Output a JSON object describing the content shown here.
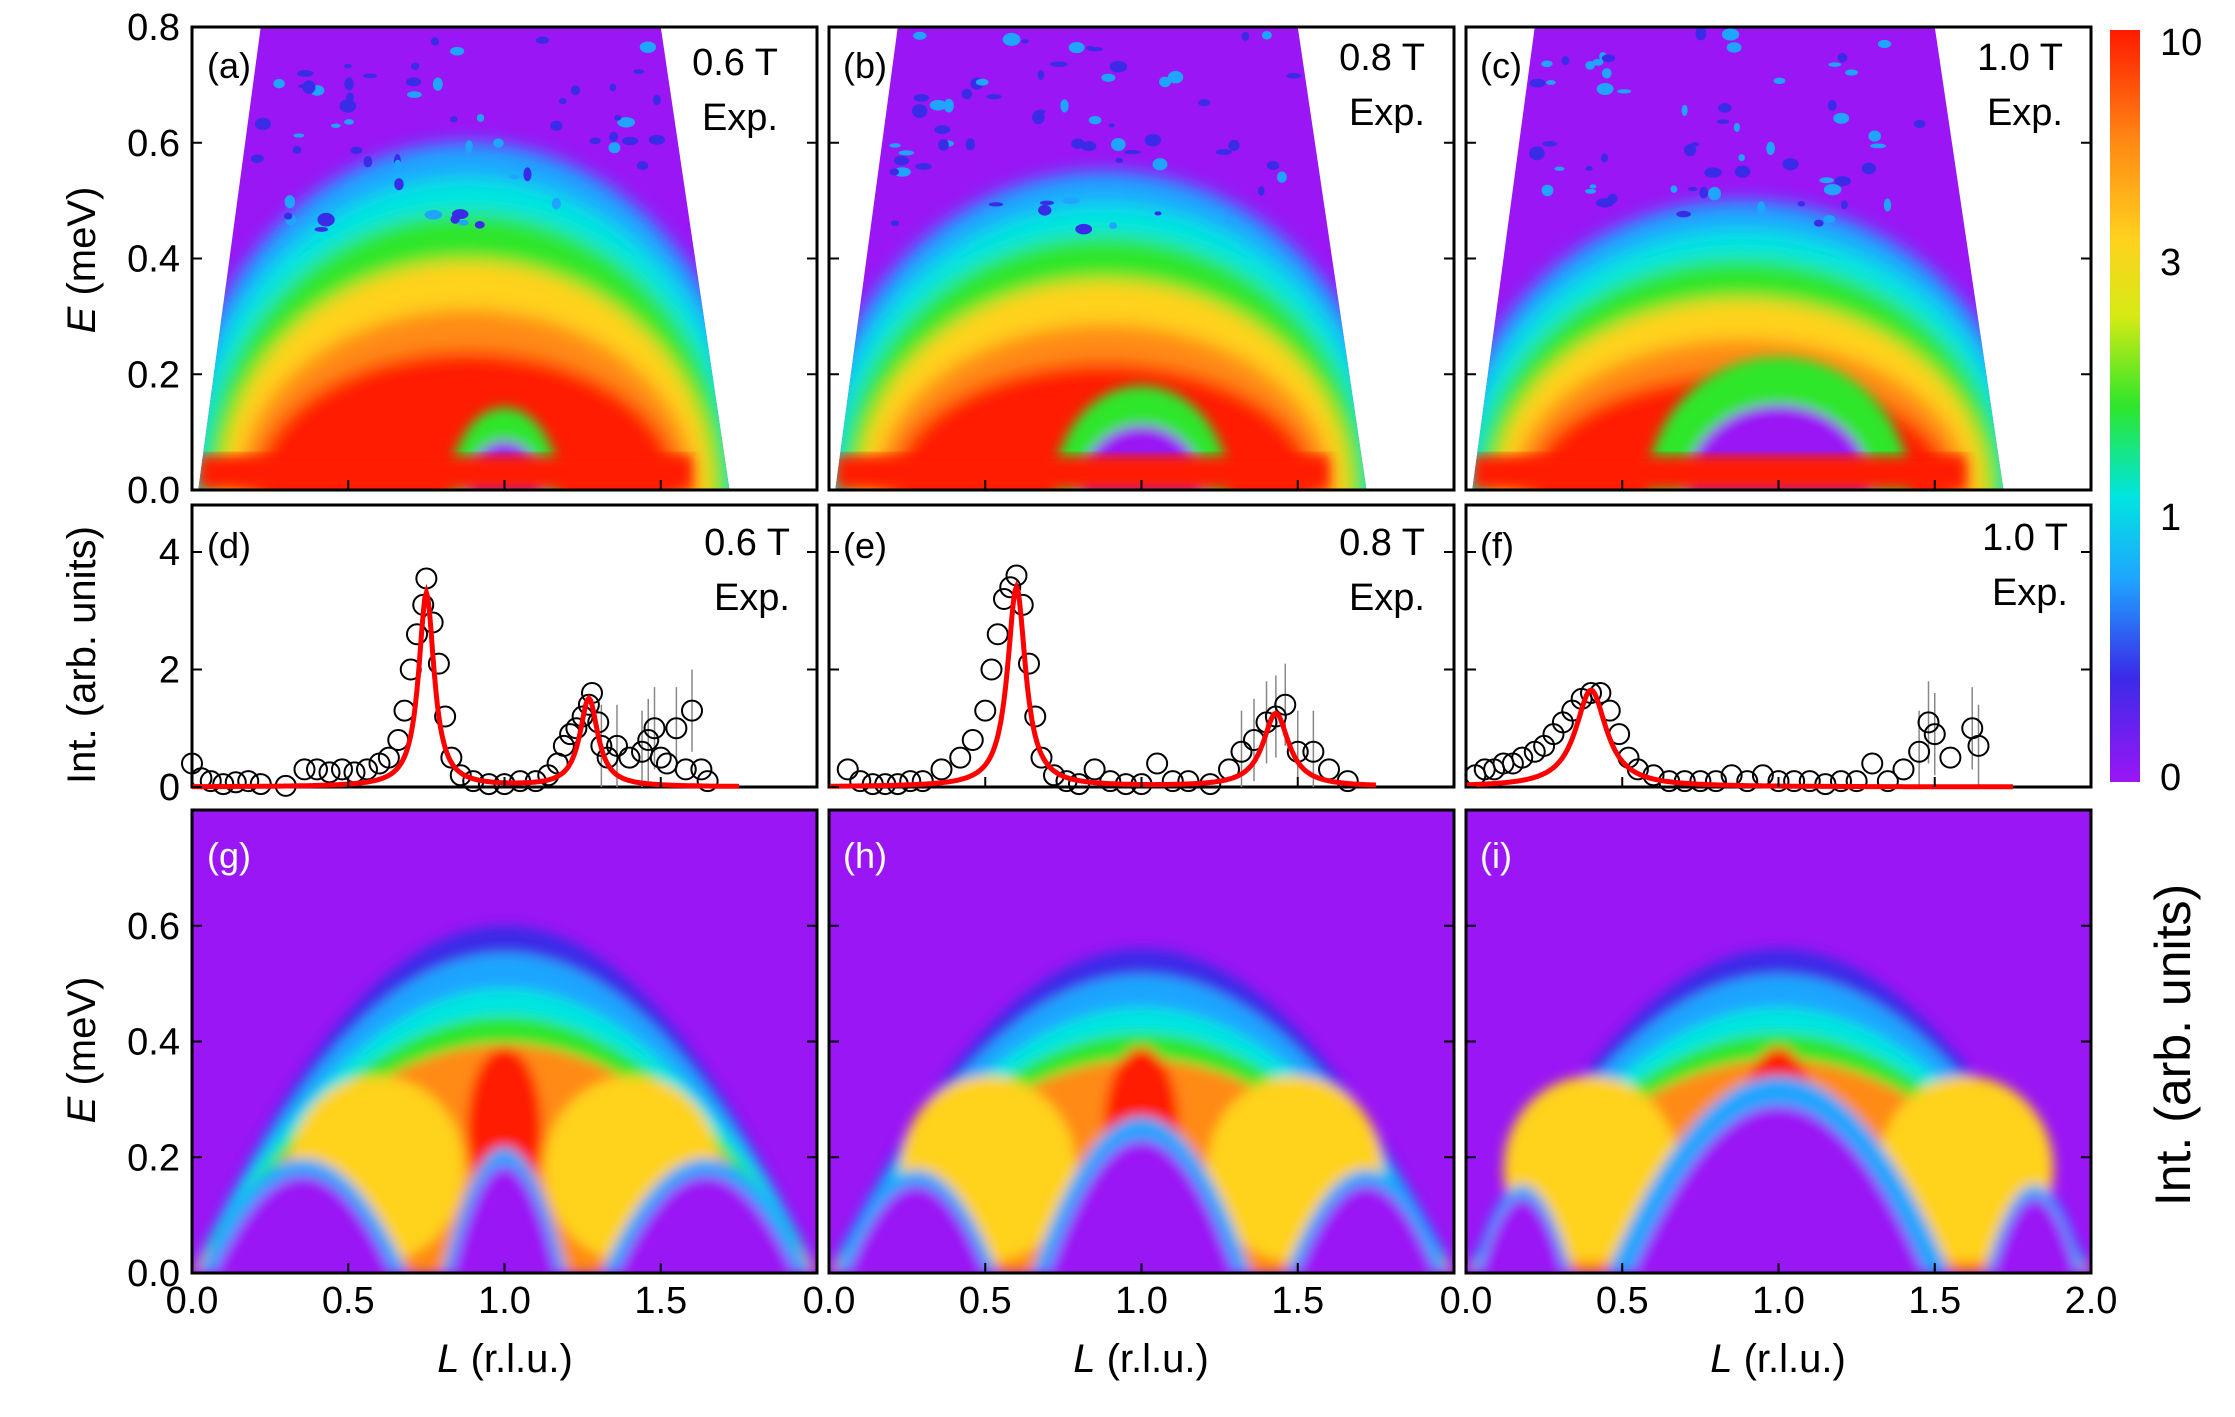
{
  "colors": {
    "background_purple": "#9a16f5",
    "fit_line": "#ff0000",
    "frame": "#000000"
  },
  "colorbar": {
    "tick_labels": [
      "10",
      "3",
      "1",
      "0"
    ],
    "title": "Int. (arb. units)",
    "colormap": [
      "#9a16f5",
      "#3a2be8",
      "#1fa5ff",
      "#00e5e0",
      "#2ee62a",
      "#d6ea14",
      "#ffd21e",
      "#ff8a14",
      "#ff1a00"
    ]
  },
  "y_axes": {
    "top_title_italic": "E",
    "top_title_rest": " (meV)",
    "top_ticks": [
      "0.0",
      "0.2",
      "0.4",
      "0.6",
      "0.8"
    ],
    "middle_title": "Int. (arb. units)",
    "middle_ticks": [
      "0",
      "2",
      "4"
    ],
    "bottom_title_italic": "E",
    "bottom_title_rest": " (meV)",
    "bottom_ticks": [
      "0.0",
      "0.2",
      "0.4",
      "0.6"
    ]
  },
  "x_axis": {
    "title_italic": "L",
    "title_rest": " (r.l.u.)",
    "ticks_first": [
      "0.0",
      "0.5",
      "1.0",
      "1.5"
    ],
    "ticks_middle": [
      "0.0",
      "0.5",
      "1.0",
      "1.5"
    ],
    "ticks_last": [
      "0.0",
      "0.5",
      "1.0",
      "1.5",
      "2.0"
    ]
  },
  "panels": {
    "a": {
      "label": "(a)",
      "field": "0.6 T",
      "note": "Exp."
    },
    "b": {
      "label": "(b)",
      "field": "0.8 T",
      "note": "Exp."
    },
    "c": {
      "label": "(c)",
      "field": "1.0 T",
      "note": "Exp."
    },
    "d": {
      "label": "(d)",
      "field": "0.6 T",
      "note": "Exp."
    },
    "e": {
      "label": "(e)",
      "field": "0.8 T",
      "note": "Exp."
    },
    "f": {
      "label": "(f)",
      "field": "1.0 T",
      "note": "Exp."
    },
    "g": {
      "label": "(g)"
    },
    "h": {
      "label": "(h)"
    },
    "i": {
      "label": "(i)"
    }
  },
  "chart_data": [
    {
      "type": "heatmap",
      "panel": "a",
      "field": "0.6 T",
      "xlabel": "L (r.l.u.)",
      "ylabel": "E (meV)",
      "xlim": [
        0,
        2
      ],
      "ylim": [
        0,
        0.8
      ],
      "dispersion_peaks_L": [
        0.75,
        1.25
      ],
      "bandwidth_top_meV": 0.6
    },
    {
      "type": "heatmap",
      "panel": "b",
      "field": "0.8 T",
      "xlabel": "L (r.l.u.)",
      "ylabel": "E (meV)",
      "xlim": [
        0,
        2
      ],
      "ylim": [
        0,
        0.8
      ],
      "dispersion_peaks_L": [
        0.6,
        1.4
      ],
      "bandwidth_top_meV": 0.55
    },
    {
      "type": "heatmap",
      "panel": "c",
      "field": "1.0 T",
      "xlabel": "L (r.l.u.)",
      "ylabel": "E (meV)",
      "xlim": [
        0,
        2
      ],
      "ylim": [
        0,
        0.8
      ],
      "dispersion_peaks_L": [
        0.4,
        1.6
      ],
      "bandwidth_top_meV": 0.5
    },
    {
      "type": "scatter",
      "panel": "d",
      "field": "0.6 T",
      "xlim": [
        0,
        2
      ],
      "ylim": [
        0,
        4.8
      ],
      "ylabel": "Int. (arb. units)",
      "points": [
        [
          0.0,
          0.4
        ],
        [
          0.03,
          0.15
        ],
        [
          0.06,
          0.1
        ],
        [
          0.1,
          0.05
        ],
        [
          0.14,
          0.08
        ],
        [
          0.18,
          0.1
        ],
        [
          0.22,
          0.05
        ],
        [
          0.3,
          0.02
        ],
        [
          0.36,
          0.3
        ],
        [
          0.4,
          0.3
        ],
        [
          0.44,
          0.25
        ],
        [
          0.48,
          0.3
        ],
        [
          0.52,
          0.25
        ],
        [
          0.56,
          0.3
        ],
        [
          0.6,
          0.4
        ],
        [
          0.63,
          0.5
        ],
        [
          0.66,
          0.8
        ],
        [
          0.68,
          1.3
        ],
        [
          0.7,
          2.0
        ],
        [
          0.72,
          2.6
        ],
        [
          0.74,
          3.1
        ],
        [
          0.75,
          3.55
        ],
        [
          0.77,
          2.8
        ],
        [
          0.79,
          2.1
        ],
        [
          0.81,
          1.2
        ],
        [
          0.83,
          0.5
        ],
        [
          0.86,
          0.2
        ],
        [
          0.9,
          0.1
        ],
        [
          0.95,
          0.05
        ],
        [
          1.0,
          0.05
        ],
        [
          1.05,
          0.1
        ],
        [
          1.1,
          0.1
        ],
        [
          1.14,
          0.2
        ],
        [
          1.17,
          0.4
        ],
        [
          1.19,
          0.7
        ],
        [
          1.21,
          0.9
        ],
        [
          1.23,
          1.0
        ],
        [
          1.25,
          1.2
        ],
        [
          1.27,
          1.4
        ],
        [
          1.28,
          1.6
        ],
        [
          1.3,
          1.1
        ],
        [
          1.31,
          0.7
        ],
        [
          1.33,
          0.5
        ],
        [
          1.36,
          0.7
        ],
        [
          1.4,
          0.5
        ],
        [
          1.44,
          0.6
        ],
        [
          1.46,
          0.8
        ],
        [
          1.48,
          1.0
        ],
        [
          1.5,
          0.5
        ],
        [
          1.52,
          0.4
        ],
        [
          1.55,
          1.0
        ],
        [
          1.58,
          0.3
        ],
        [
          1.6,
          1.3
        ],
        [
          1.63,
          0.3
        ],
        [
          1.65,
          0.1
        ]
      ],
      "fit_peaks": [
        {
          "center": 0.75,
          "height": 3.3,
          "width": 0.03
        },
        {
          "center": 1.27,
          "height": 1.5,
          "width": 0.035
        }
      ],
      "fit_range": [
        0,
        1.75
      ]
    },
    {
      "type": "scatter",
      "panel": "e",
      "field": "0.8 T",
      "xlim": [
        0,
        2
      ],
      "ylim": [
        0,
        4.8
      ],
      "ylabel": "Int. (arb. units)",
      "points": [
        [
          0.06,
          0.3
        ],
        [
          0.1,
          0.1
        ],
        [
          0.14,
          0.05
        ],
        [
          0.18,
          0.05
        ],
        [
          0.22,
          0.05
        ],
        [
          0.26,
          0.1
        ],
        [
          0.3,
          0.1
        ],
        [
          0.36,
          0.3
        ],
        [
          0.42,
          0.5
        ],
        [
          0.46,
          0.8
        ],
        [
          0.5,
          1.3
        ],
        [
          0.52,
          2.0
        ],
        [
          0.54,
          2.6
        ],
        [
          0.56,
          3.2
        ],
        [
          0.58,
          3.4
        ],
        [
          0.6,
          3.6
        ],
        [
          0.62,
          3.1
        ],
        [
          0.64,
          2.1
        ],
        [
          0.66,
          1.2
        ],
        [
          0.68,
          0.5
        ],
        [
          0.72,
          0.2
        ],
        [
          0.76,
          0.1
        ],
        [
          0.8,
          0.05
        ],
        [
          0.85,
          0.3
        ],
        [
          0.9,
          0.1
        ],
        [
          0.95,
          0.05
        ],
        [
          1.0,
          0.05
        ],
        [
          1.05,
          0.4
        ],
        [
          1.1,
          0.1
        ],
        [
          1.15,
          0.1
        ],
        [
          1.22,
          0.05
        ],
        [
          1.28,
          0.3
        ],
        [
          1.32,
          0.6
        ],
        [
          1.36,
          0.8
        ],
        [
          1.4,
          1.1
        ],
        [
          1.43,
          1.2
        ],
        [
          1.46,
          1.4
        ],
        [
          1.5,
          0.6
        ],
        [
          1.55,
          0.6
        ],
        [
          1.6,
          0.3
        ],
        [
          1.66,
          0.1
        ]
      ],
      "fit_peaks": [
        {
          "center": 0.6,
          "height": 3.4,
          "width": 0.035
        },
        {
          "center": 1.43,
          "height": 1.25,
          "width": 0.05
        }
      ],
      "fit_range": [
        0,
        1.75
      ]
    },
    {
      "type": "scatter",
      "panel": "f",
      "field": "1.0 T",
      "xlim": [
        0,
        2
      ],
      "ylim": [
        0,
        4.8
      ],
      "ylabel": "Int. (arb. units)",
      "points": [
        [
          0.03,
          0.2
        ],
        [
          0.06,
          0.3
        ],
        [
          0.09,
          0.3
        ],
        [
          0.12,
          0.4
        ],
        [
          0.15,
          0.4
        ],
        [
          0.18,
          0.5
        ],
        [
          0.22,
          0.6
        ],
        [
          0.25,
          0.7
        ],
        [
          0.28,
          0.9
        ],
        [
          0.31,
          1.1
        ],
        [
          0.34,
          1.3
        ],
        [
          0.37,
          1.5
        ],
        [
          0.4,
          1.6
        ],
        [
          0.43,
          1.6
        ],
        [
          0.46,
          1.3
        ],
        [
          0.49,
          0.9
        ],
        [
          0.52,
          0.5
        ],
        [
          0.55,
          0.3
        ],
        [
          0.6,
          0.2
        ],
        [
          0.65,
          0.1
        ],
        [
          0.7,
          0.1
        ],
        [
          0.75,
          0.1
        ],
        [
          0.8,
          0.1
        ],
        [
          0.85,
          0.2
        ],
        [
          0.9,
          0.1
        ],
        [
          0.95,
          0.2
        ],
        [
          1.0,
          0.1
        ],
        [
          1.05,
          0.1
        ],
        [
          1.1,
          0.1
        ],
        [
          1.15,
          0.05
        ],
        [
          1.2,
          0.1
        ],
        [
          1.25,
          0.1
        ],
        [
          1.3,
          0.4
        ],
        [
          1.35,
          0.1
        ],
        [
          1.4,
          0.3
        ],
        [
          1.45,
          0.6
        ],
        [
          1.48,
          1.1
        ],
        [
          1.5,
          0.9
        ],
        [
          1.55,
          0.5
        ],
        [
          1.62,
          1.0
        ],
        [
          1.64,
          0.7
        ]
      ],
      "fit_peaks": [
        {
          "center": 0.4,
          "height": 1.65,
          "width": 0.06
        }
      ],
      "fit_range": [
        0,
        1.75
      ]
    },
    {
      "type": "heatmap",
      "panel": "g",
      "xlabel": "L (r.l.u.)",
      "ylabel": "E (meV)",
      "xlim": [
        0,
        2
      ],
      "ylim": [
        0,
        0.8
      ],
      "dispersion_peaks_L": [
        0.75,
        1.25
      ],
      "bandwidth_top_meV": 0.6
    },
    {
      "type": "heatmap",
      "panel": "h",
      "xlabel": "L (r.l.u.)",
      "ylabel": "E (meV)",
      "xlim": [
        0,
        2
      ],
      "ylim": [
        0,
        0.8
      ],
      "dispersion_peaks_L": [
        0.6,
        1.4
      ],
      "bandwidth_top_meV": 0.56
    },
    {
      "type": "heatmap",
      "panel": "i",
      "xlabel": "L (r.l.u.)",
      "ylabel": "E (meV)",
      "xlim": [
        0,
        2
      ],
      "ylim": [
        0,
        0.8
      ],
      "dispersion_peaks_L": [
        0.4,
        1.6
      ],
      "bandwidth_top_meV": 0.56
    }
  ]
}
